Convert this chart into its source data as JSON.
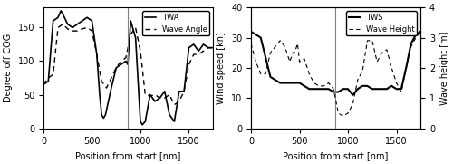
{
  "left": {
    "twa": {
      "x": [
        0,
        50,
        100,
        150,
        180,
        200,
        250,
        300,
        350,
        400,
        450,
        500,
        550,
        580,
        600,
        620,
        640,
        700,
        750,
        800,
        850,
        870,
        900,
        950,
        1000,
        1020,
        1050,
        1100,
        1150,
        1200,
        1250,
        1300,
        1350,
        1400,
        1450,
        1500,
        1550,
        1600,
        1650,
        1700,
        1750
      ],
      "y": [
        65,
        70,
        160,
        165,
        175,
        170,
        155,
        150,
        155,
        160,
        165,
        160,
        110,
        50,
        20,
        15,
        20,
        60,
        90,
        95,
        100,
        95,
        160,
        135,
        10,
        5,
        10,
        50,
        40,
        45,
        55,
        20,
        10,
        55,
        55,
        120,
        125,
        115,
        125,
        120,
        120
      ]
    },
    "wave_angle": {
      "x": [
        0,
        50,
        100,
        150,
        200,
        250,
        300,
        350,
        400,
        450,
        500,
        550,
        600,
        650,
        700,
        750,
        800,
        850,
        900,
        950,
        1000,
        1050,
        1100,
        1150,
        1200,
        1250,
        1300,
        1350,
        1400,
        1450,
        1500,
        1550,
        1600,
        1650,
        1700,
        1750
      ],
      "y": [
        65,
        75,
        80,
        150,
        155,
        148,
        145,
        145,
        148,
        150,
        145,
        110,
        70,
        60,
        75,
        90,
        100,
        105,
        140,
        150,
        115,
        50,
        48,
        50,
        45,
        45,
        50,
        35,
        40,
        55,
        95,
        110,
        110,
        115,
        120,
        120
      ]
    },
    "ylabel": "Degree off COG",
    "xlabel": "Position from start [nm]",
    "ylim": [
      0,
      180
    ],
    "xlim": [
      0,
      1750
    ],
    "yticks": [
      0,
      50,
      100,
      150
    ],
    "xticks": [
      0,
      500,
      1000,
      1500
    ],
    "legend_labels": [
      "TWA",
      "Wave Angle"
    ],
    "vline": 870
  },
  "right": {
    "tws": {
      "x": [
        0,
        50,
        100,
        200,
        300,
        350,
        400,
        450,
        500,
        550,
        600,
        650,
        700,
        750,
        800,
        850,
        870,
        900,
        950,
        1000,
        1050,
        1100,
        1150,
        1200,
        1250,
        1300,
        1350,
        1400,
        1450,
        1500,
        1550,
        1600,
        1650,
        1700,
        1750
      ],
      "y": [
        32,
        31,
        30,
        17,
        15,
        15,
        15,
        15,
        15,
        14,
        13,
        13,
        13,
        13,
        13,
        12,
        12,
        12,
        13,
        13,
        11,
        13,
        14,
        14,
        13,
        13,
        13,
        13,
        14,
        13,
        13,
        20,
        28,
        31,
        32
      ]
    },
    "wave_height": {
      "x": [
        0,
        50,
        100,
        150,
        200,
        250,
        300,
        350,
        400,
        430,
        450,
        480,
        500,
        550,
        600,
        650,
        700,
        750,
        800,
        850,
        870,
        900,
        950,
        1000,
        1050,
        1100,
        1150,
        1200,
        1250,
        1300,
        1350,
        1400,
        1450,
        1500,
        1550,
        1600,
        1650,
        1700,
        1750
      ],
      "y": [
        2.8,
        2.2,
        1.8,
        1.8,
        2.5,
        2.7,
        2.9,
        2.7,
        2.2,
        2.5,
        2.5,
        2.8,
        2.2,
        2.3,
        1.8,
        1.5,
        1.4,
        1.4,
        1.5,
        1.3,
        1.0,
        0.5,
        0.4,
        0.5,
        0.8,
        1.6,
        1.9,
        2.9,
        2.9,
        2.2,
        2.5,
        2.6,
        2.0,
        1.5,
        1.2,
        2.0,
        2.7,
        3.0,
        3.2
      ]
    },
    "ylabel_left": "Wind speed [kn]",
    "ylabel_right": "Wave height [m]",
    "xlabel": "Position from start [nm]",
    "ylim_left": [
      0,
      40
    ],
    "ylim_right": [
      0,
      4
    ],
    "xlim": [
      0,
      1750
    ],
    "yticks_left": [
      0,
      10,
      20,
      30,
      40
    ],
    "yticks_right": [
      0,
      1,
      2,
      3,
      4
    ],
    "xticks": [
      0,
      500,
      1000,
      1500
    ],
    "legend_labels": [
      "TWS",
      "Wave Height"
    ],
    "vline": 870
  },
  "fig_width": 5.0,
  "fig_height": 1.81,
  "dpi": 100
}
